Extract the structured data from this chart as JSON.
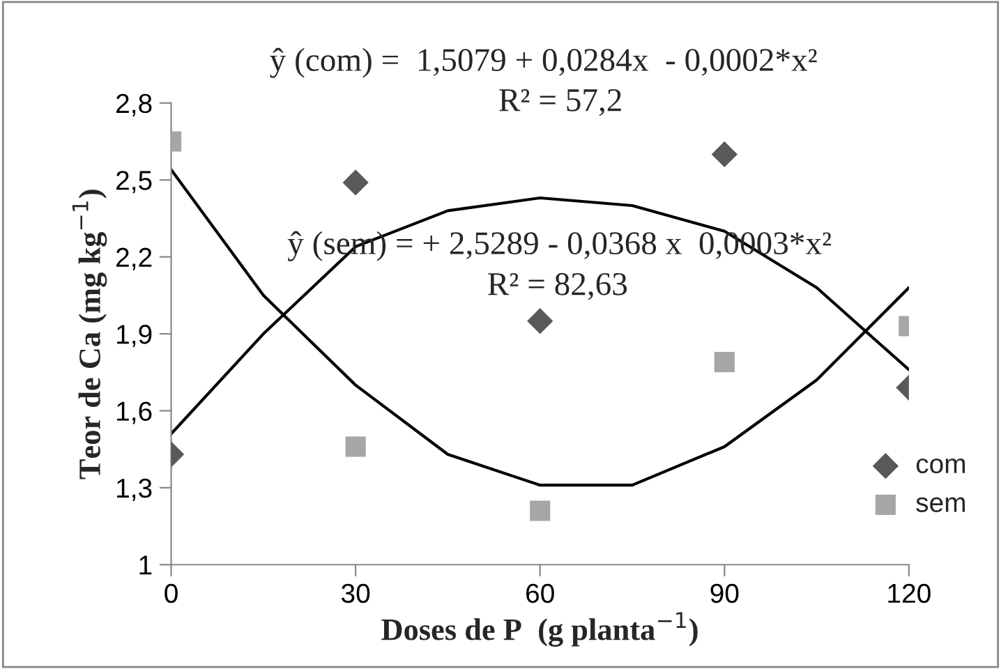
{
  "chart_data": {
    "type": "scatter",
    "xlabel": "Doses de P  (g planta$^{−1}$)",
    "ylabel": "Teor de Ca (mg kg$^{−1}$)",
    "xlim": [
      0,
      120
    ],
    "xticks": [
      0,
      30,
      60,
      90,
      120
    ],
    "ylim": [
      1,
      2.8
    ],
    "yticks": [
      {
        "value": 1,
        "label": "1"
      },
      {
        "value": 1.3,
        "label": "1,3"
      },
      {
        "value": 1.6,
        "label": "1,6"
      },
      {
        "value": 1.9,
        "label": "1,9"
      },
      {
        "value": 2.2,
        "label": "2,2"
      },
      {
        "value": 2.5,
        "label": "2,5"
      },
      {
        "value": 2.8,
        "label": "2,8"
      }
    ],
    "x": [
      0,
      30,
      60,
      90,
      120
    ],
    "series": [
      {
        "name": "com",
        "type": "scatter",
        "marker": "diamond",
        "color": "#595959",
        "values": [
          1.43,
          2.49,
          1.95,
          2.6,
          1.69
        ]
      },
      {
        "name": "sem",
        "type": "scatter",
        "marker": "square",
        "color": "#a6a6a6",
        "values": [
          2.65,
          1.46,
          1.21,
          1.79,
          1.93
        ]
      },
      {
        "type": "line",
        "color": "#000000",
        "marker": "none",
        "line_style": "solid",
        "x": [
          0,
          15,
          30,
          45,
          60,
          75,
          90,
          105,
          120
        ],
        "values": [
          1.51,
          1.9,
          2.24,
          2.38,
          2.43,
          2.4,
          2.3,
          2.08,
          1.76
        ]
      },
      {
        "type": "line",
        "color": "#000000",
        "marker": "none",
        "line_style": "solid",
        "x": [
          0,
          15,
          30,
          45,
          60,
          75,
          90,
          105,
          120
        ],
        "values": [
          2.54,
          2.05,
          1.7,
          1.43,
          1.31,
          1.31,
          1.46,
          1.72,
          2.08
        ]
      }
    ],
    "annotations": [
      "ŷ (com) =  1,5079 + 0,0284x  - 0,0002*x²",
      "R² = 57,2",
      "ŷ (sem) = + 2,5289 - 0,0368 x  0,0003*x²",
      "R² = 82,63"
    ],
    "legend": "bottom right",
    "grid": false
  }
}
